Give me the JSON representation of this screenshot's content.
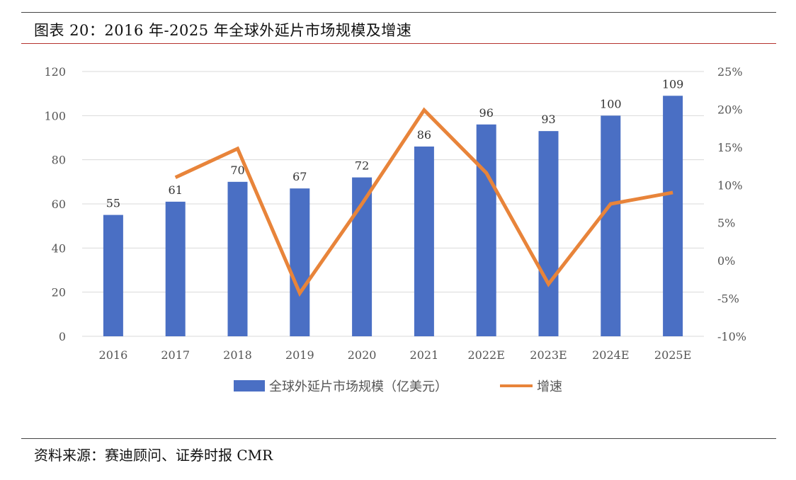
{
  "figure": {
    "title": "图表 20：2016 年-2025 年全球外延片市场规模及增速",
    "source": "资料来源：赛迪顾问、证券时报 CMR"
  },
  "chart_data": {
    "type": "bar+line",
    "categories": [
      "2016",
      "2017",
      "2018",
      "2019",
      "2020",
      "2021",
      "2022E",
      "2023E",
      "2024E",
      "2025E"
    ],
    "series": [
      {
        "name": "全球外延片市场规模（亿美元）",
        "type": "bar",
        "axis": "left",
        "values": [
          55,
          61,
          70,
          67,
          72,
          86,
          96,
          93,
          100,
          109
        ],
        "color": "#4a6fc4"
      },
      {
        "name": "增速",
        "type": "line",
        "axis": "right",
        "values": [
          null,
          11.0,
          14.8,
          -4.3,
          7.5,
          19.9,
          11.6,
          -3.1,
          7.5,
          9.0
        ],
        "color": "#e8843a"
      }
    ],
    "y_left": {
      "min": 0,
      "max": 120,
      "ticks": [
        0,
        20,
        40,
        60,
        80,
        100,
        120
      ],
      "tick_labels": [
        "0",
        "20",
        "40",
        "60",
        "80",
        "100",
        "120"
      ]
    },
    "y_right": {
      "min": -10,
      "max": 25,
      "ticks": [
        -10,
        -5,
        0,
        5,
        10,
        15,
        20,
        25
      ],
      "tick_labels": [
        "-10%",
        "-5%",
        "0%",
        "5%",
        "10%",
        "15%",
        "20%",
        "25%"
      ]
    },
    "grid": true,
    "legend_position": "bottom-center",
    "data_labels": [
      "55",
      "61",
      "70",
      "67",
      "72",
      "86",
      "96",
      "93",
      "100",
      "109"
    ]
  }
}
